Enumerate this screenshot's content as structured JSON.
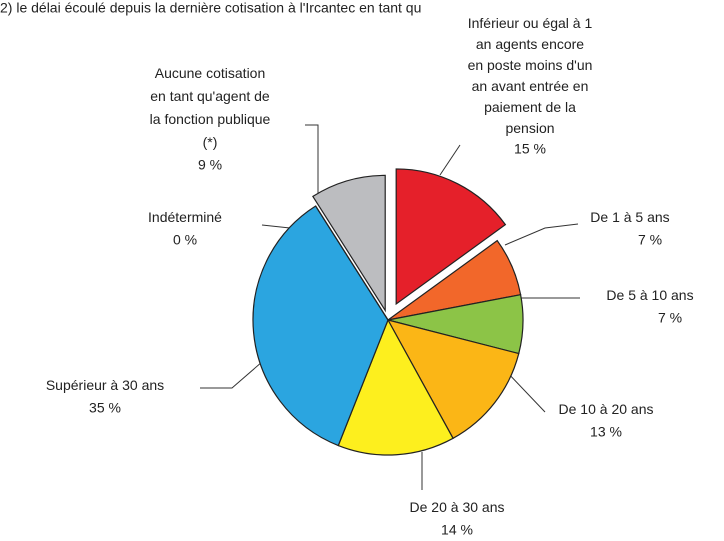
{
  "chart_data": {
    "type": "pie",
    "title": "2) le délai écoulé depuis la dernière cotisation à l'Ircantec en tant qu",
    "categories": [
      "Inférieur ou égal à 1\nan  agents encore\nen poste moins d'un\nan avant entrée en\npaiement de la\npension",
      "De 1 à 5 ans",
      "De 5 à 10 ans",
      "De 10 à 20 ans",
      "De 20 à 30 ans",
      "Supérieur à 30 ans",
      "Indéterminé",
      "Aucune cotisation\nen tant qu'agent de\nla fonction publique\n(*)"
    ],
    "values": [
      15,
      7,
      7,
      13,
      14,
      35,
      0,
      9
    ],
    "value_labels": [
      "15 %",
      "7 %",
      "7 %",
      "13 %",
      "14 %",
      "35 %",
      "0 %",
      "9 %"
    ],
    "colors": [
      "#e5202a",
      "#f2672a",
      "#8cc447",
      "#fbb616",
      "#fdef1e",
      "#2ba5e0",
      "#bcbdc0",
      "#bcbdc0"
    ]
  }
}
